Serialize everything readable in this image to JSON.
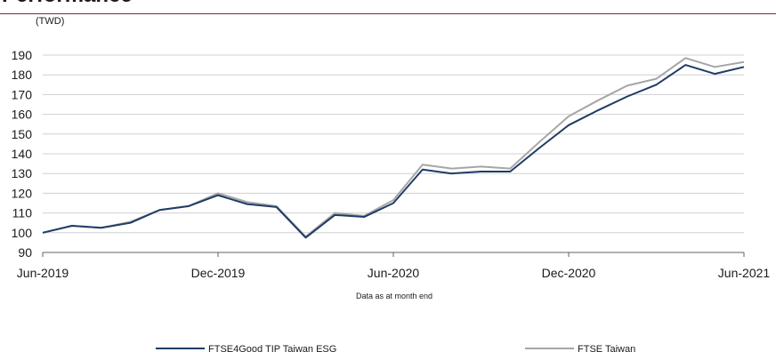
{
  "chart_data": {
    "type": "line",
    "title": "Performance",
    "unit_label": "(TWD)",
    "note": "Data as at month end",
    "x": [
      "Jun-2019",
      "Jul-2019",
      "Aug-2019",
      "Sep-2019",
      "Oct-2019",
      "Nov-2019",
      "Dec-2019",
      "Jan-2020",
      "Feb-2020",
      "Mar-2020",
      "Apr-2020",
      "May-2020",
      "Jun-2020",
      "Jul-2020",
      "Aug-2020",
      "Sep-2020",
      "Oct-2020",
      "Nov-2020",
      "Dec-2020",
      "Jan-2021",
      "Feb-2021",
      "Mar-2021",
      "Apr-2021",
      "May-2021",
      "Jun-2021"
    ],
    "x_tick_labels": [
      "Jun-2019",
      "Dec-2019",
      "Jun-2020",
      "Dec-2020",
      "Jun-2021"
    ],
    "ylim": [
      90,
      190
    ],
    "y_ticks": [
      90,
      100,
      110,
      120,
      130,
      140,
      150,
      160,
      170,
      180,
      190
    ],
    "grid": true,
    "legend_position": "bottom",
    "series": [
      {
        "name": "FTSE4Good TIP Taiwan ESG",
        "color": "#1f3b66",
        "values": [
          100.0,
          103.5,
          102.5,
          105.0,
          111.5,
          113.5,
          119.0,
          114.5,
          113.0,
          97.5,
          109.0,
          108.0,
          115.0,
          132.0,
          130.0,
          131.0,
          131.0,
          143.0,
          154.5,
          162.0,
          169.0,
          175.0,
          185.0,
          180.5,
          184.0
        ]
      },
      {
        "name": "FTSE Taiwan",
        "color": "#a6a6a6",
        "values": [
          100.0,
          103.5,
          102.5,
          105.5,
          111.5,
          113.5,
          120.0,
          115.5,
          113.5,
          98.0,
          110.0,
          108.5,
          116.5,
          134.5,
          132.5,
          133.5,
          132.5,
          146.0,
          159.0,
          167.0,
          174.5,
          178.0,
          188.5,
          184.0,
          186.5
        ]
      }
    ]
  }
}
